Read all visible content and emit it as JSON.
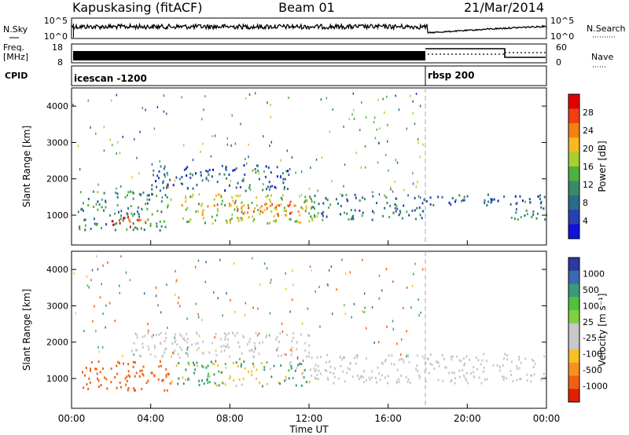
{
  "header": {
    "radar": "Kapuskasing (fitACF)",
    "beam": "Beam 01",
    "date": "21/Mar/2014"
  },
  "summary": {
    "nsky_label": "N.Sky",
    "nsky_ticks": [
      "10^5",
      "10^0"
    ],
    "nsearch_label": "N.Search",
    "nsearch_ticks": [
      "10^5",
      "10^0"
    ],
    "freq_label": "Freq.",
    "freq_unit": "[MHz]",
    "freq_ticks": [
      "18",
      "8"
    ],
    "nave_label": "Nave",
    "nave_ticks": [
      "60",
      "0"
    ],
    "cpid_label": "CPID",
    "cpid_segments": [
      {
        "label": "icescan -1200",
        "start_hour": 0,
        "end_hour": 18
      },
      {
        "label": "rbsp 200",
        "start_hour": 18,
        "end_hour": 24
      }
    ]
  },
  "chart_data": [
    {
      "type": "heatmap",
      "name": "power-panel",
      "ylabel": "Slant Range [km]",
      "ylim": [
        180,
        4500
      ],
      "yticks": [
        1000,
        2000,
        3000,
        4000
      ],
      "xlim": [
        0,
        24
      ],
      "colorbar": {
        "label": "Power [dB]",
        "ticks": [
          "28",
          "24",
          "20",
          "16",
          "12",
          "8",
          "4"
        ],
        "colors": [
          "#e00000",
          "#f04010",
          "#f48010",
          "#f8b820",
          "#a8d030",
          "#50b040",
          "#3a8a6a",
          "#2a6a8a",
          "#2a40b0",
          "#1010e0"
        ]
      },
      "echo_regions": [
        {
          "start_hour": 0.3,
          "end_hour": 5.0,
          "range_min": 600,
          "range_max": 1700,
          "level": 10
        },
        {
          "start_hour": 2.0,
          "end_hour": 4.0,
          "range_min": 700,
          "range_max": 1000,
          "level": 26
        },
        {
          "start_hour": 5.5,
          "end_hour": 12.5,
          "range_min": 800,
          "range_max": 1600,
          "level": 16
        },
        {
          "start_hour": 6.5,
          "end_hour": 11.5,
          "range_min": 1000,
          "range_max": 1400,
          "level": 22
        },
        {
          "start_hour": 12.0,
          "end_hour": 18.0,
          "range_min": 900,
          "range_max": 1600,
          "level": 8
        },
        {
          "start_hour": 18.0,
          "end_hour": 24.0,
          "range_min": 1300,
          "range_max": 1600,
          "level": 5
        },
        {
          "start_hour": 22.0,
          "end_hour": 24.0,
          "range_min": 900,
          "range_max": 1400,
          "level": 10
        },
        {
          "start_hour": 4.0,
          "end_hour": 11.0,
          "range_min": 1700,
          "range_max": 2400,
          "level": 6
        }
      ]
    },
    {
      "type": "heatmap",
      "name": "velocity-panel",
      "ylabel": "Slant Range [km]",
      "ylim": [
        180,
        4500
      ],
      "yticks": [
        1000,
        2000,
        3000,
        4000
      ],
      "xlim": [
        0,
        24
      ],
      "colorbar": {
        "label": "Velocity [m s⁻¹]",
        "ticks": [
          "1000",
          "500",
          "100",
          "25",
          "-25",
          "-100",
          "-500",
          "-1000"
        ],
        "colors": [
          "#2a3aa0",
          "#3a6ab0",
          "#3a9a7a",
          "#50c040",
          "#80d040",
          "#c8c8c8",
          "#c8c8c8",
          "#f8c020",
          "#f89020",
          "#f06010",
          "#e02000"
        ]
      },
      "echo_regions": [
        {
          "start_hour": 0.5,
          "end_hour": 5.0,
          "range_min": 700,
          "range_max": 1500,
          "level": -300
        },
        {
          "start_hour": 5.0,
          "end_hour": 12.0,
          "range_min": 800,
          "range_max": 1500,
          "level": 60
        },
        {
          "start_hour": 3.0,
          "end_hour": 12.0,
          "range_min": 1600,
          "range_max": 2300,
          "level": 0
        },
        {
          "start_hour": 12.0,
          "end_hour": 24.0,
          "range_min": 900,
          "range_max": 1700,
          "level": 0
        }
      ]
    }
  ],
  "x_axis": {
    "label": "Time UT",
    "ticks": [
      "00:00",
      "04:00",
      "08:00",
      "12:00",
      "16:00",
      "20:00",
      "00:00"
    ]
  }
}
